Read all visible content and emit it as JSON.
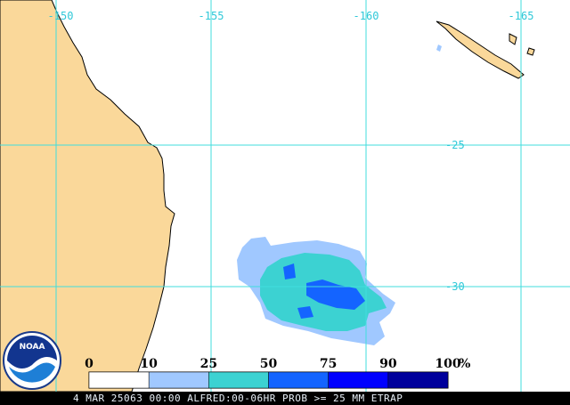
{
  "map": {
    "lon_labels": [
      "-150",
      "-155",
      "-160",
      "-165"
    ],
    "lat_labels": [
      "-25",
      "-30"
    ]
  },
  "legend": {
    "labels": [
      "0",
      "10",
      "25",
      "50",
      "75",
      "90",
      "100"
    ],
    "unit": "%",
    "colors": [
      "#ffffff",
      "#a0c8ff",
      "#3cd2d2",
      "#1464ff",
      "#0000ff",
      "#00009c"
    ]
  },
  "logo": "NOAA",
  "footer": "4 MAR 25063 00:00 ALFRED:00-06HR PROB >= 25 MM ETRAP"
}
